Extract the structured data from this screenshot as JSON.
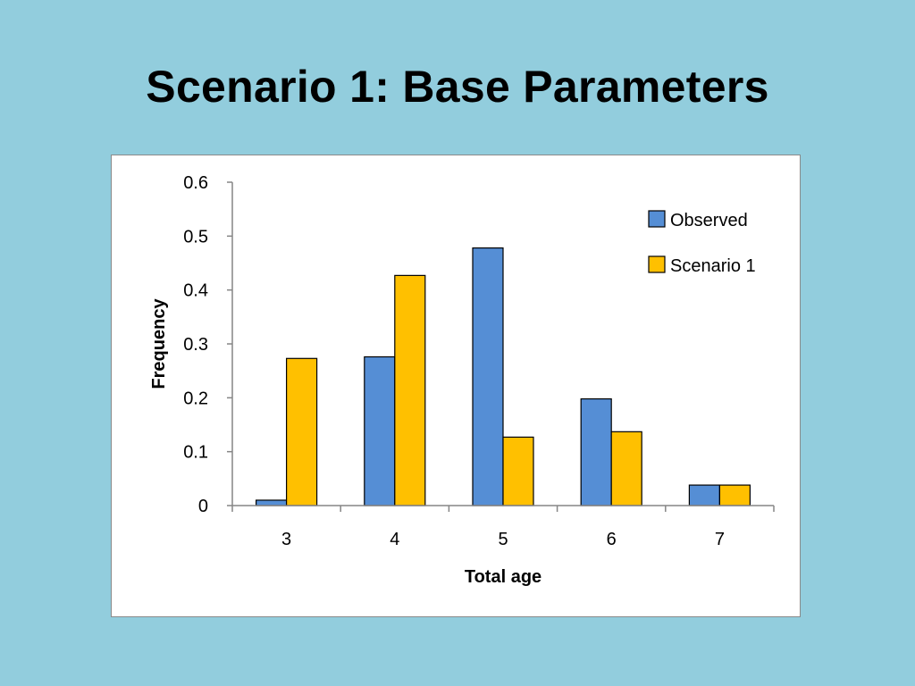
{
  "slide": {
    "title": "Scenario 1: Base Parameters"
  },
  "chart_data": {
    "type": "bar",
    "title": "",
    "xlabel": "Total age",
    "ylabel": "Frequency",
    "categories": [
      "3",
      "4",
      "5",
      "6",
      "7"
    ],
    "ylim": [
      0,
      0.6
    ],
    "yticks": [
      "0",
      "0.1",
      "0.2",
      "0.3",
      "0.4",
      "0.5",
      "0.6"
    ],
    "grid": false,
    "legend_position": "top-right",
    "series": [
      {
        "name": "Observed",
        "color": "#558ED5",
        "values": [
          0.01,
          0.276,
          0.478,
          0.198,
          0.038
        ]
      },
      {
        "name": "Scenario 1",
        "color": "#FFC000",
        "values": [
          0.273,
          0.427,
          0.127,
          0.137,
          0.038
        ]
      }
    ]
  }
}
